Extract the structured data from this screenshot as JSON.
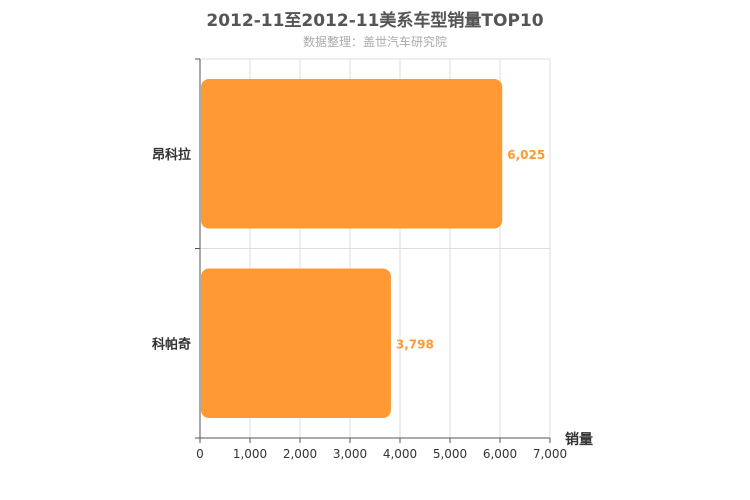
{
  "title": "2012-11至2012-11美系车型销量TOP10",
  "subtitle": "数据整理：盖世汽车研究院",
  "chart_data": {
    "type": "bar",
    "orientation": "horizontal",
    "categories": [
      "昂科拉",
      "科帕奇"
    ],
    "values": [
      6025,
      3798
    ],
    "value_labels": [
      "6,025",
      "3,798"
    ],
    "xlabel": "销量",
    "xlim": [
      0,
      7000
    ],
    "x_ticks": [
      "0",
      "1,000",
      "2,000",
      "3,000",
      "4,000",
      "5,000",
      "6,000",
      "7,000"
    ],
    "grid": true,
    "bar_color": "#ff9933"
  }
}
